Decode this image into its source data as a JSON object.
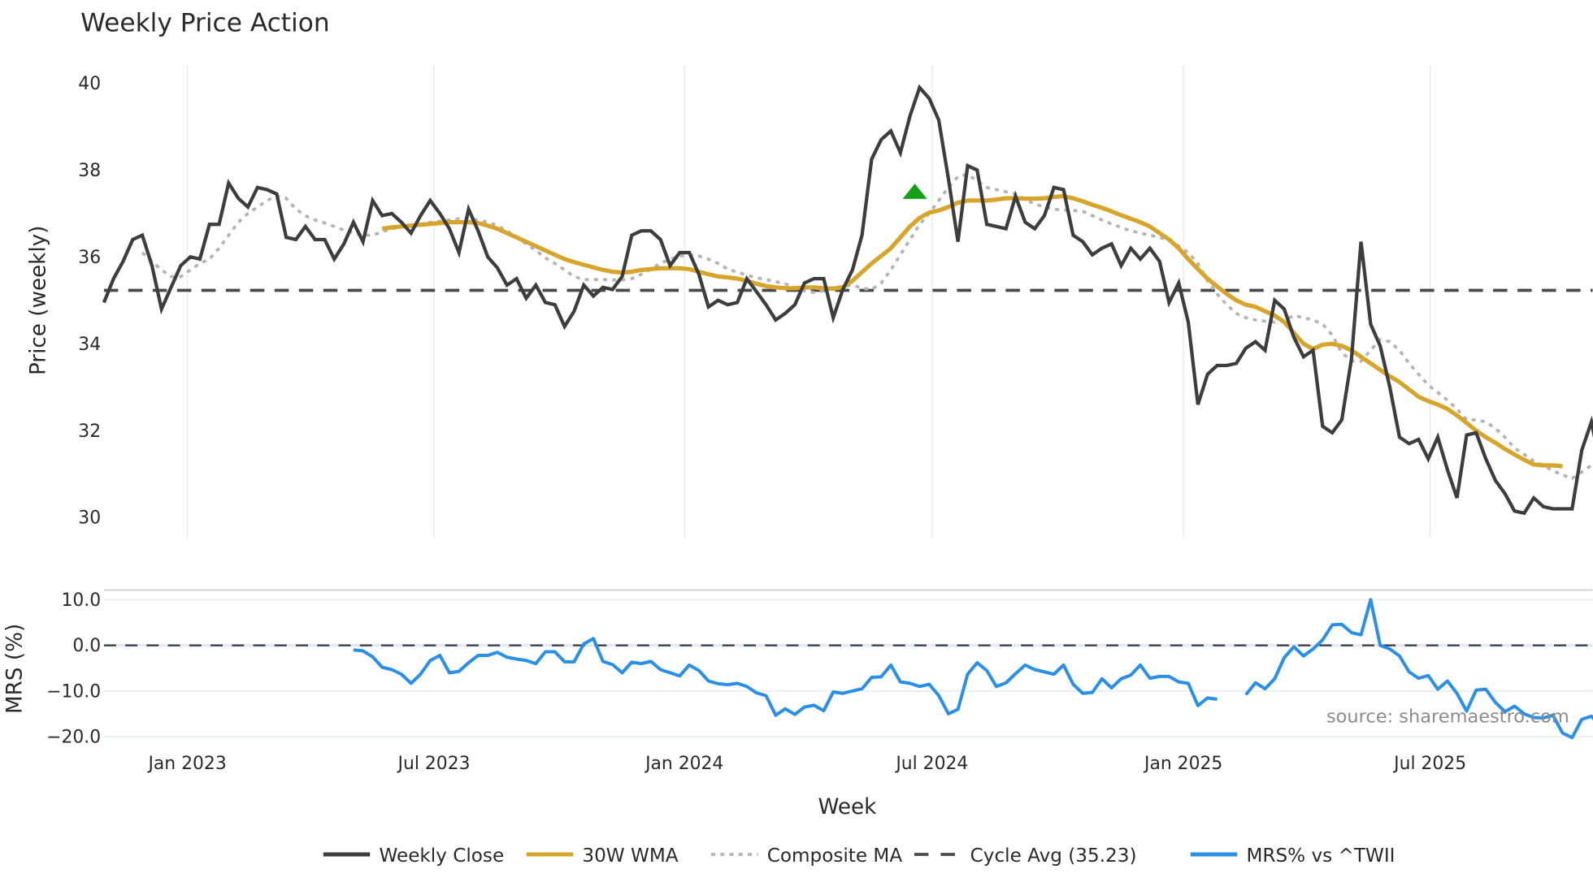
{
  "title": "Weekly Price Action",
  "source_text": "source: sharemaestro.com",
  "colors": {
    "close": "#3d3d3d",
    "wma": "#d6a52a",
    "composite": "#b5b5b5",
    "cycle": "#4a4a4a",
    "mrs": "#2a8fe6",
    "marker": "#16a016",
    "grid": "#e9edf2"
  },
  "price_panel": {
    "ylabel": "Price (weekly)",
    "yticks": [
      "40",
      "38",
      "36",
      "34",
      "32",
      "30"
    ],
    "ytick_values": [
      40,
      38,
      36,
      34,
      32,
      30
    ]
  },
  "mrs_panel": {
    "ylabel": "MRS (%)",
    "yticks": [
      "10.0",
      "0.0",
      "−10.0",
      "−20.0"
    ],
    "ytick_values": [
      10,
      0,
      -10,
      -20
    ]
  },
  "xaxis": {
    "label": "Week",
    "ticks": [
      "Jan 2023",
      "Jul 2023",
      "Jan 2024",
      "Jul 2024",
      "Jan 2025",
      "Jul 2025"
    ],
    "tick_week_index": [
      8.7,
      34.4,
      60.5,
      86.3,
      112.5,
      138.2
    ]
  },
  "legend": [
    {
      "label": "Weekly Close",
      "style": "solid",
      "color_key": "close"
    },
    {
      "label": "30W WMA",
      "style": "solid",
      "color_key": "wma"
    },
    {
      "label": "Composite MA",
      "style": "dotted",
      "color_key": "composite"
    },
    {
      "label": "Cycle Avg (35.23)",
      "style": "dashed",
      "color_key": "cycle"
    },
    {
      "label": "MRS% vs ^TWII",
      "style": "solid",
      "color_key": "mrs"
    }
  ],
  "chart_data": [
    {
      "type": "line",
      "title": "Weekly Price Action",
      "xlabel": "Week",
      "ylabel": "Price (weekly)",
      "ylim": [
        29.7,
        40.4
      ],
      "grid": {
        "x": true,
        "y": false
      },
      "legend_position": "bottom",
      "x_tick_labels": [
        "Jan 2023",
        "Jul 2023",
        "Jan 2024",
        "Jul 2024",
        "Jan 2025",
        "Jul 2025"
      ],
      "x_note": "x is week index starting ~Nov 2022; 157 weekly points",
      "series": [
        {
          "name": "Weekly Close",
          "start_index": 0,
          "values": [
            34.95,
            35.5,
            35.9,
            36.4,
            36.5,
            35.8,
            34.8,
            35.3,
            35.8,
            36.0,
            35.95,
            36.75,
            36.75,
            37.7,
            37.35,
            37.15,
            37.6,
            37.55,
            37.45,
            36.45,
            36.4,
            36.7,
            36.4,
            36.4,
            35.95,
            36.3,
            36.8,
            36.35,
            37.3,
            36.95,
            37.0,
            36.8,
            36.55,
            36.95,
            37.3,
            37.0,
            36.65,
            36.1,
            37.1,
            36.6,
            36.0,
            35.75,
            35.35,
            35.5,
            35.05,
            35.35,
            34.95,
            34.9,
            34.4,
            34.75,
            35.35,
            35.1,
            35.3,
            35.25,
            35.55,
            36.5,
            36.6,
            36.6,
            36.4,
            35.8,
            36.1,
            36.1,
            35.6,
            34.85,
            35.0,
            34.9,
            34.95,
            35.5,
            35.2,
            34.9,
            34.55,
            34.7,
            34.9,
            35.4,
            35.5,
            35.5,
            34.6,
            35.25,
            35.7,
            36.5,
            38.25,
            38.7,
            38.9,
            38.4,
            39.25,
            39.9,
            39.65,
            39.15,
            37.8,
            36.35,
            38.1,
            38.0,
            36.75,
            36.7,
            36.65,
            37.4,
            36.8,
            36.65,
            36.95,
            37.6,
            37.55,
            36.5,
            36.35,
            36.05,
            36.2,
            36.3,
            35.8,
            36.2,
            35.95,
            36.2,
            35.9,
            34.95,
            35.4,
            34.5,
            32.6,
            33.3,
            33.5,
            33.5,
            33.55,
            33.9,
            34.05,
            33.85,
            35.0,
            34.8,
            34.15,
            33.7,
            33.85,
            32.1,
            31.95,
            32.25,
            33.65,
            36.35,
            34.45,
            33.95,
            33.0,
            31.85,
            31.7,
            31.8,
            31.35,
            31.85,
            31.1,
            30.45,
            31.9,
            31.95,
            31.35,
            30.85,
            30.55,
            30.15,
            30.1,
            30.45,
            30.25,
            30.2,
            30.2,
            30.2,
            31.55,
            32.2,
            31.15
          ]
        },
        {
          "name": "30W WMA",
          "start_index": 29,
          "values": [
            36.65,
            36.68,
            36.7,
            36.72,
            36.74,
            36.76,
            36.78,
            36.8,
            36.8,
            36.8,
            36.78,
            36.72,
            36.65,
            36.55,
            36.45,
            36.35,
            36.25,
            36.15,
            36.05,
            35.95,
            35.88,
            35.82,
            35.76,
            35.7,
            35.66,
            35.64,
            35.66,
            35.7,
            35.72,
            35.74,
            35.74,
            35.74,
            35.72,
            35.66,
            35.6,
            35.55,
            35.53,
            35.5,
            35.45,
            35.38,
            35.33,
            35.3,
            35.28,
            35.28,
            35.3,
            35.3,
            35.28,
            35.27,
            35.3,
            35.45,
            35.65,
            35.85,
            36.02,
            36.2,
            36.45,
            36.7,
            36.9,
            37.02,
            37.07,
            37.15,
            37.25,
            37.3,
            37.3,
            37.3,
            37.32,
            37.35,
            37.35,
            37.34,
            37.34,
            37.35,
            37.38,
            37.4,
            37.35,
            37.28,
            37.2,
            37.13,
            37.05,
            36.96,
            36.88,
            36.8,
            36.7,
            36.55,
            36.4,
            36.2,
            35.95,
            35.72,
            35.5,
            35.32,
            35.15,
            35.0,
            34.9,
            34.85,
            34.75,
            34.65,
            34.5,
            34.25,
            34.0,
            33.88,
            33.98,
            34.0,
            33.95,
            33.85,
            33.7,
            33.55,
            33.4,
            33.25,
            33.12,
            32.95,
            32.78,
            32.68,
            32.6,
            32.5,
            32.35,
            32.18,
            32.0,
            31.85,
            31.72,
            31.58,
            31.45,
            31.33,
            31.22,
            31.2,
            31.2,
            31.18
          ]
        },
        {
          "name": "Composite MA",
          "start_index": 4,
          "values": [
            36.1,
            35.9,
            35.7,
            35.55,
            35.55,
            35.7,
            35.85,
            35.95,
            36.2,
            36.5,
            36.8,
            37.0,
            37.15,
            37.3,
            37.4,
            37.35,
            37.1,
            36.95,
            36.85,
            36.78,
            36.7,
            36.62,
            36.55,
            36.5,
            36.5,
            36.58,
            36.65,
            36.7,
            36.72,
            36.75,
            36.8,
            36.82,
            36.85,
            36.88,
            36.88,
            36.85,
            36.8,
            36.72,
            36.6,
            36.45,
            36.3,
            36.15,
            35.98,
            35.85,
            35.7,
            35.55,
            35.48,
            35.48,
            35.48,
            35.47,
            35.47,
            35.5,
            35.6,
            35.72,
            35.85,
            35.95,
            36.02,
            36.05,
            36.02,
            35.95,
            35.85,
            35.72,
            35.65,
            35.58,
            35.52,
            35.48,
            35.43,
            35.38,
            35.3,
            35.22,
            35.18,
            35.22,
            35.28,
            35.33,
            35.35,
            35.28,
            35.25,
            35.4,
            35.7,
            36.05,
            36.4,
            36.75,
            37.0,
            37.3,
            37.6,
            37.85,
            37.9,
            37.75,
            37.6,
            37.55,
            37.5,
            37.45,
            37.32,
            37.22,
            37.15,
            37.1,
            37.08,
            37.07,
            37.05,
            36.95,
            36.85,
            36.76,
            36.68,
            36.6,
            36.55,
            36.5,
            36.45,
            36.38,
            36.25,
            36.1,
            35.85,
            35.45,
            35.15,
            34.9,
            34.7,
            34.6,
            34.55,
            34.52,
            34.5,
            34.55,
            34.65,
            34.6,
            34.55,
            34.45,
            34.2,
            33.8,
            33.6,
            33.6,
            33.85,
            34.1,
            34.05,
            33.85,
            33.55,
            33.3,
            33.05,
            32.88,
            32.7,
            32.5,
            32.25,
            32.25,
            32.2,
            32.05,
            31.85,
            31.6,
            31.45,
            31.3,
            31.2,
            31.08,
            30.98,
            30.9,
            31.05,
            31.2,
            31.22
          ]
        },
        {
          "name": "Cycle Avg (35.23)",
          "constant": 35.23
        }
      ],
      "annotations": [
        {
          "type": "marker",
          "shape": "triangle-up",
          "color": "#16a016",
          "week_index": 84.5,
          "value": 37.5
        }
      ]
    },
    {
      "type": "line",
      "title": "",
      "xlabel": "Week",
      "ylabel": "MRS (%)",
      "ylim": [
        -22.5,
        12
      ],
      "grid": {
        "x": false,
        "y": true
      },
      "zero_line": "dashed",
      "series": [
        {
          "name": "MRS% vs ^TWII",
          "start_index": 26,
          "values": [
            -1.0,
            -1.2,
            -2.5,
            -4.8,
            -5.3,
            -6.3,
            -8.3,
            -6.3,
            -3.3,
            -2.2,
            -6.0,
            -5.7,
            -3.8,
            -2.2,
            -2.2,
            -1.5,
            -2.6,
            -3.0,
            -3.3,
            -4.0,
            -1.4,
            -1.4,
            -3.6,
            -3.6,
            0.3,
            1.5,
            -3.5,
            -4.2,
            -6.0,
            -3.7,
            -4.0,
            -3.5,
            -5.3,
            -6.0,
            -6.7,
            -4.3,
            -5.5,
            -7.8,
            -8.4,
            -8.6,
            -8.3,
            -9.0,
            -10.4,
            -11.0,
            -15.3,
            -13.9,
            -15.1,
            -13.5,
            -13.1,
            -14.3,
            -10.2,
            -10.5,
            -10.0,
            -9.5,
            -7.0,
            -6.9,
            -4.3,
            -8.0,
            -8.3,
            -9.0,
            -8.5,
            -11.0,
            -15.0,
            -14.0,
            -6.3,
            -3.8,
            -5.5,
            -9.0,
            -8.2,
            -6.2,
            -4.3,
            -5.3,
            -5.8,
            -6.3,
            -4.3,
            -8.5,
            -10.5,
            -10.3,
            -7.3,
            -9.3,
            -7.3,
            -6.5,
            -4.3,
            -7.2,
            -6.8,
            -6.8,
            -8.0,
            -8.3,
            -13.2,
            -11.5,
            -11.8,
            null,
            null,
            -10.8,
            -8.2,
            -9.5,
            -7.3,
            -2.7,
            -0.3,
            -2.3,
            -0.8,
            1.2,
            4.5,
            4.6,
            2.8,
            2.3,
            10.0,
            0.0,
            -0.8,
            -2.3,
            -5.8,
            -7.2,
            -6.6,
            -9.6,
            -7.8,
            -10.5,
            -14.4,
            -9.8,
            -9.6,
            -12.5,
            -14.5,
            -13.3,
            -15.0,
            -15.8,
            -15.9,
            -15.3,
            -19.2,
            -20.2,
            -16.2,
            -15.5,
            -17.8
          ]
        }
      ]
    }
  ]
}
